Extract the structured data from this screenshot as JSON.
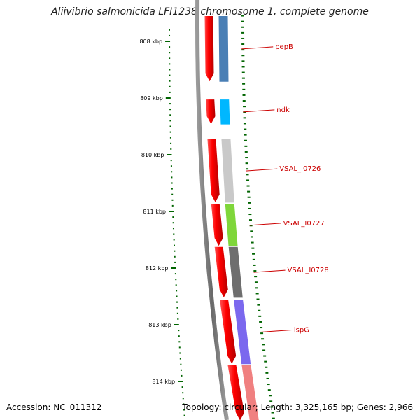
{
  "title": "Aliivibrio salmonicida LFI1238 chromosome 1, complete genome",
  "ticks": [
    {
      "label": "808 kbp",
      "value": 808
    },
    {
      "label": "809 kbp",
      "value": 809
    },
    {
      "label": "810 kbp",
      "value": 810
    },
    {
      "label": "811 kbp",
      "value": 811
    },
    {
      "label": "812 kbp",
      "value": 812
    },
    {
      "label": "813 kbp",
      "value": 813
    },
    {
      "label": "814 kbp",
      "value": 814
    }
  ],
  "genes": [
    {
      "name": "",
      "color": "#4a7fb5",
      "start": 807.55,
      "end": 808.72
    },
    {
      "name": "pepB",
      "color": "#4a7fb5",
      "start": 807.55,
      "end": 808.72
    },
    {
      "name": "ndk",
      "color": "#00b7ff",
      "start": 809.02,
      "end": 809.47
    },
    {
      "name": "VSAL_I0726",
      "color": "#c9c9c9",
      "start": 809.72,
      "end": 810.85
    },
    {
      "name": "VSAL_I0727",
      "color": "#7fd63a",
      "start": 810.87,
      "end": 811.62
    },
    {
      "name": "VSAL_I0728",
      "color": "#6e6e6e",
      "start": 811.62,
      "end": 812.53
    },
    {
      "name": "ispG",
      "color": "#7b68ee",
      "start": 812.56,
      "end": 813.7
    },
    {
      "name": "",
      "color": "#f08080",
      "start": 813.71,
      "end": 814.7
    }
  ],
  "colors": {
    "backbone": "#7a7a7a",
    "cds": "#ff0000",
    "tick": "#006400",
    "label": "#cc0000"
  },
  "footer": {
    "accession": "Accession: NC_011312",
    "stats": "Topology: circular; Length: 3,325,165 bp; Genes: 2,966"
  }
}
